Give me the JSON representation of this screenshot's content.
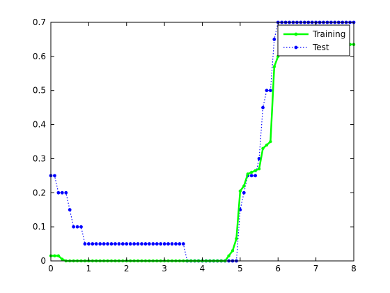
{
  "chart_data": {
    "type": "line",
    "title": "",
    "xlabel": "",
    "ylabel": "",
    "xlim": [
      0,
      8
    ],
    "ylim": [
      0,
      0.7
    ],
    "xticks": [
      "0",
      "1",
      "2",
      "3",
      "4",
      "5",
      "6",
      "7",
      "8"
    ],
    "yticks": [
      "0",
      "0.1",
      "0.2",
      "0.3",
      "0.4",
      "0.5",
      "0.6",
      "0.7"
    ],
    "grid": false,
    "legend_position": "top-right",
    "series": [
      {
        "name": "Training",
        "color": "#00ff00",
        "line_style": "solid",
        "marker": "dot",
        "x": [
          0,
          0.1,
          0.2,
          0.3,
          0.4,
          0.5,
          0.6,
          0.7,
          0.8,
          0.9,
          1.0,
          1.1,
          1.2,
          1.3,
          1.4,
          1.5,
          1.6,
          1.7,
          1.8,
          1.9,
          2.0,
          2.1,
          2.2,
          2.3,
          2.4,
          2.5,
          2.6,
          2.7,
          2.8,
          2.9,
          3.0,
          3.1,
          3.2,
          3.3,
          3.4,
          3.5,
          3.6,
          3.7,
          3.8,
          3.9,
          4.0,
          4.1,
          4.2,
          4.3,
          4.4,
          4.5,
          4.6,
          4.7,
          4.8,
          4.9,
          5.0,
          5.1,
          5.2,
          5.3,
          5.4,
          5.5,
          5.6,
          5.7,
          5.8,
          5.9,
          6.0,
          6.1,
          6.2,
          6.3,
          6.4,
          6.5,
          6.6,
          6.7,
          6.8,
          6.9,
          7.0,
          7.1,
          7.2,
          7.3,
          7.4,
          7.5,
          7.6,
          7.7,
          7.8,
          7.9,
          8.0
        ],
        "y": [
          0.015,
          0.015,
          0.015,
          0.005,
          0,
          0,
          0,
          0,
          0,
          0,
          0,
          0,
          0,
          0,
          0,
          0,
          0,
          0,
          0,
          0,
          0,
          0,
          0,
          0,
          0,
          0,
          0,
          0,
          0,
          0,
          0,
          0,
          0,
          0,
          0,
          0,
          0,
          0,
          0,
          0,
          0,
          0,
          0,
          0,
          0,
          0,
          0,
          0.015,
          0.03,
          0.065,
          0.205,
          0.22,
          0.255,
          0.26,
          0.265,
          0.27,
          0.33,
          0.34,
          0.35,
          0.57,
          0.6,
          0.625,
          0.635,
          0.635,
          0.635,
          0.635,
          0.635,
          0.635,
          0.635,
          0.635,
          0.635,
          0.635,
          0.635,
          0.635,
          0.635,
          0.635,
          0.635,
          0.635,
          0.635,
          0.635,
          0.635
        ]
      },
      {
        "name": "Test",
        "color": "#0000ff",
        "line_style": "dotted",
        "marker": "dot",
        "x": [
          0,
          0.1,
          0.2,
          0.3,
          0.4,
          0.5,
          0.6,
          0.7,
          0.8,
          0.9,
          1.0,
          1.1,
          1.2,
          1.3,
          1.4,
          1.5,
          1.6,
          1.7,
          1.8,
          1.9,
          2.0,
          2.1,
          2.2,
          2.3,
          2.4,
          2.5,
          2.6,
          2.7,
          2.8,
          2.9,
          3.0,
          3.1,
          3.2,
          3.3,
          3.4,
          3.5,
          3.6,
          3.7,
          3.8,
          3.9,
          4.0,
          4.1,
          4.2,
          4.3,
          4.4,
          4.5,
          4.6,
          4.7,
          4.8,
          4.9,
          5.0,
          5.1,
          5.2,
          5.3,
          5.4,
          5.5,
          5.6,
          5.7,
          5.8,
          5.9,
          6.0,
          6.1,
          6.2,
          6.3,
          6.4,
          6.5,
          6.6,
          6.7,
          6.8,
          6.9,
          7.0,
          7.1,
          7.2,
          7.3,
          7.4,
          7.5,
          7.6,
          7.7,
          7.8,
          7.9,
          8.0
        ],
        "y": [
          0.25,
          0.25,
          0.2,
          0.2,
          0.2,
          0.15,
          0.1,
          0.1,
          0.1,
          0.05,
          0.05,
          0.05,
          0.05,
          0.05,
          0.05,
          0.05,
          0.05,
          0.05,
          0.05,
          0.05,
          0.05,
          0.05,
          0.05,
          0.05,
          0.05,
          0.05,
          0.05,
          0.05,
          0.05,
          0.05,
          0.05,
          0.05,
          0.05,
          0.05,
          0.05,
          0.05,
          0,
          0,
          0,
          0,
          0,
          0,
          0,
          0,
          0,
          0,
          0,
          0,
          0,
          0,
          0.15,
          0.2,
          0.25,
          0.25,
          0.25,
          0.3,
          0.45,
          0.5,
          0.5,
          0.65,
          0.7,
          0.7,
          0.7,
          0.7,
          0.7,
          0.7,
          0.7,
          0.7,
          0.7,
          0.7,
          0.7,
          0.7,
          0.7,
          0.7,
          0.7,
          0.7,
          0.7,
          0.7,
          0.7,
          0.7,
          0.7
        ]
      }
    ]
  }
}
